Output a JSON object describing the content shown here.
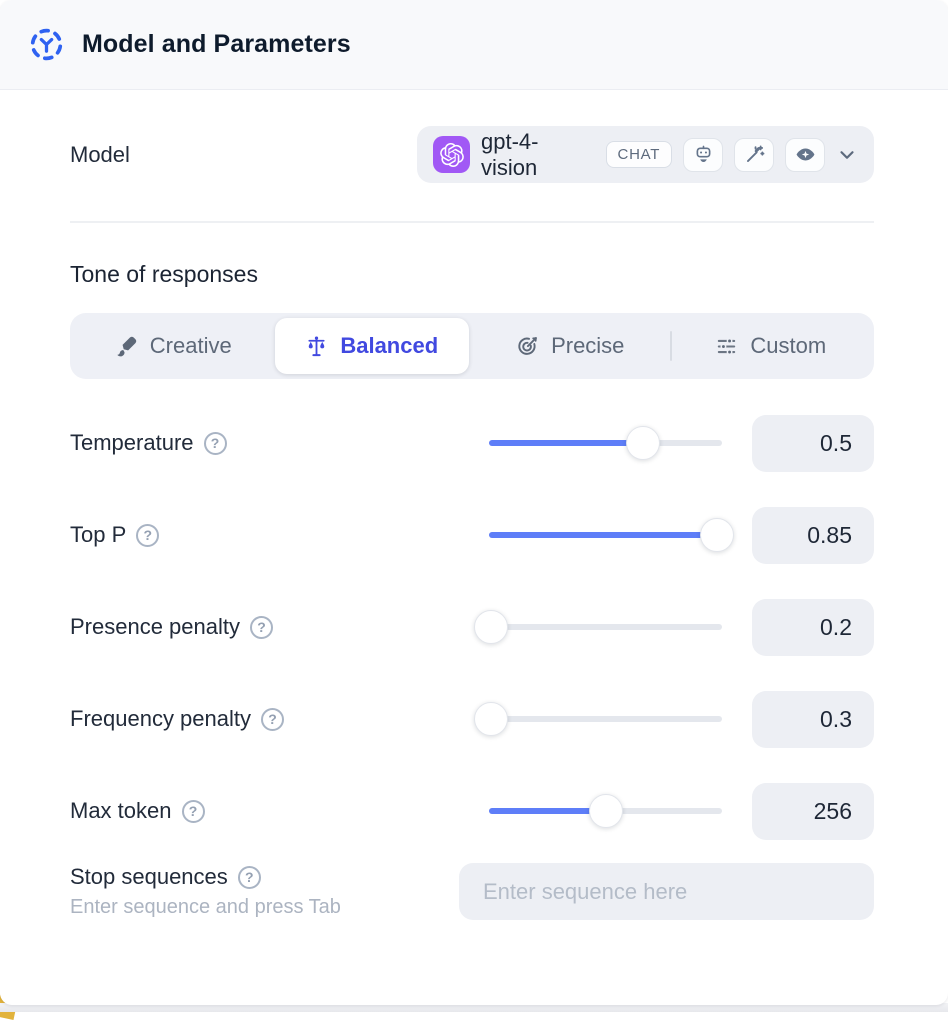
{
  "header": {
    "title": "Model and Parameters"
  },
  "model": {
    "label": "Model",
    "name": "gpt-4-vision",
    "type_badge": "CHAT",
    "provider": "openai",
    "provider_color": "#a158f5",
    "capabilities": [
      "assistant",
      "fine-tune",
      "vision"
    ]
  },
  "tone": {
    "title": "Tone of responses",
    "selected": "Balanced",
    "options": [
      {
        "label": "Creative"
      },
      {
        "label": "Balanced"
      },
      {
        "label": "Precise"
      },
      {
        "label": "Custom"
      }
    ]
  },
  "parameters": [
    {
      "label": "Temperature",
      "value": "0.5",
      "slider_percent": 66
    },
    {
      "label": "Top P",
      "value": "0.85",
      "slider_percent": 98
    },
    {
      "label": "Presence penalty",
      "value": "0.2",
      "slider_percent": 1
    },
    {
      "label": "Frequency penalty",
      "value": "0.3",
      "slider_percent": 1
    },
    {
      "label": "Max token",
      "value": "256",
      "slider_percent": 50
    }
  ],
  "stop_sequences": {
    "label": "Stop sequences",
    "hint": "Enter sequence and press Tab",
    "placeholder": "Enter sequence here"
  },
  "icons": {
    "help_glyph": "?"
  },
  "colors": {
    "accent_blue": "#2f62f1",
    "selected_tone": "#4149e0",
    "slider_fill": "#5e7ef8",
    "control_bg": "#edeff4",
    "header_bg": "#f8f9fb"
  }
}
